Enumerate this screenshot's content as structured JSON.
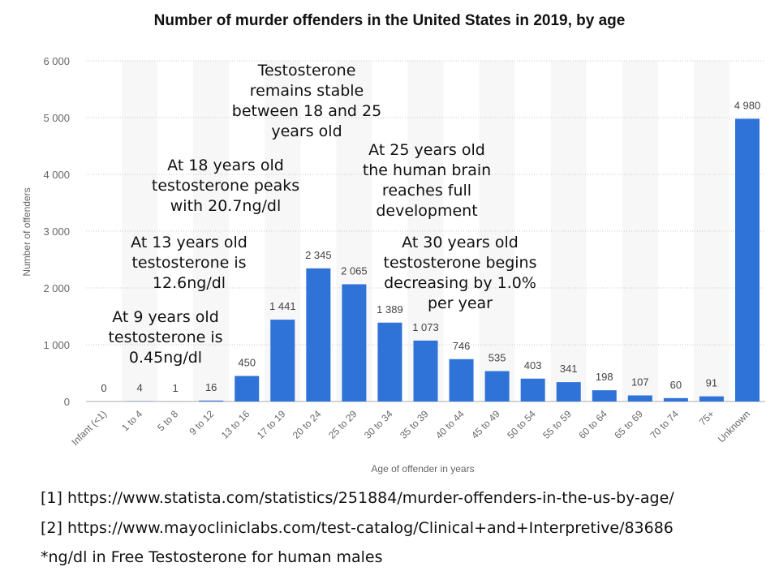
{
  "chart_data": {
    "type": "bar",
    "title": "Number of murder offenders in the United States in 2019, by age",
    "xlabel": "Age of offender in years",
    "ylabel": "Number of offenders",
    "ylim": [
      0,
      6000
    ],
    "yticks": [
      0,
      1000,
      2000,
      3000,
      4000,
      5000,
      6000
    ],
    "ytick_labels": [
      "0",
      "1 000",
      "2 000",
      "3 000",
      "4 000",
      "5 000",
      "6 000"
    ],
    "grid": true,
    "bar_color": "#2f72d8",
    "categories": [
      "Infant (<1)",
      "1 to 4",
      "5 to 8",
      "9 to 12",
      "13 to 16",
      "17 to 19",
      "20 to 24",
      "25 to 29",
      "30 to 34",
      "35 to 39",
      "40 to 44",
      "45 to 49",
      "50 to 54",
      "55 to 59",
      "60 to 64",
      "65 to 69",
      "70 to 74",
      "75+",
      "Unknown"
    ],
    "values": [
      0,
      4,
      1,
      16,
      450,
      1441,
      2345,
      2065,
      1389,
      1073,
      746,
      535,
      403,
      341,
      198,
      107,
      60,
      91,
      4980
    ],
    "value_labels": [
      "0",
      "4",
      "1",
      "16",
      "450",
      "1 441",
      "2 345",
      "2 065",
      "1 389",
      "1 073",
      "746",
      "535",
      "403",
      "341",
      "198",
      "107",
      "60",
      "91",
      "4 980"
    ],
    "annotations": [
      {
        "lines": [
          "At 9 years old",
          "testosterone is",
          "0.45ng/dl"
        ]
      },
      {
        "lines": [
          "At 13 years old",
          "testosterone is",
          "12.6ng/dl"
        ]
      },
      {
        "lines": [
          "At 18 years old",
          "testosterone peaks",
          "with 20.7ng/dl"
        ]
      },
      {
        "lines": [
          "Testosterone",
          "remains stable",
          "between 18 and 25",
          "years old"
        ]
      },
      {
        "lines": [
          "At 25 years old",
          "the human brain",
          "reaches full",
          "development"
        ]
      },
      {
        "lines": [
          "At 30 years old",
          "testosterone begins",
          "decreasing by 1.0%",
          "per year"
        ]
      }
    ]
  },
  "footer": {
    "source1": "[1] https://www.statista.com/statistics/251884/murder-offenders-in-the-us-by-age/",
    "source2": "[2] https://www.mayocliniclabs.com/test-catalog/Clinical+and+Interpretive/83686",
    "note": "*ng/dl in Free Testosterone for human males"
  }
}
